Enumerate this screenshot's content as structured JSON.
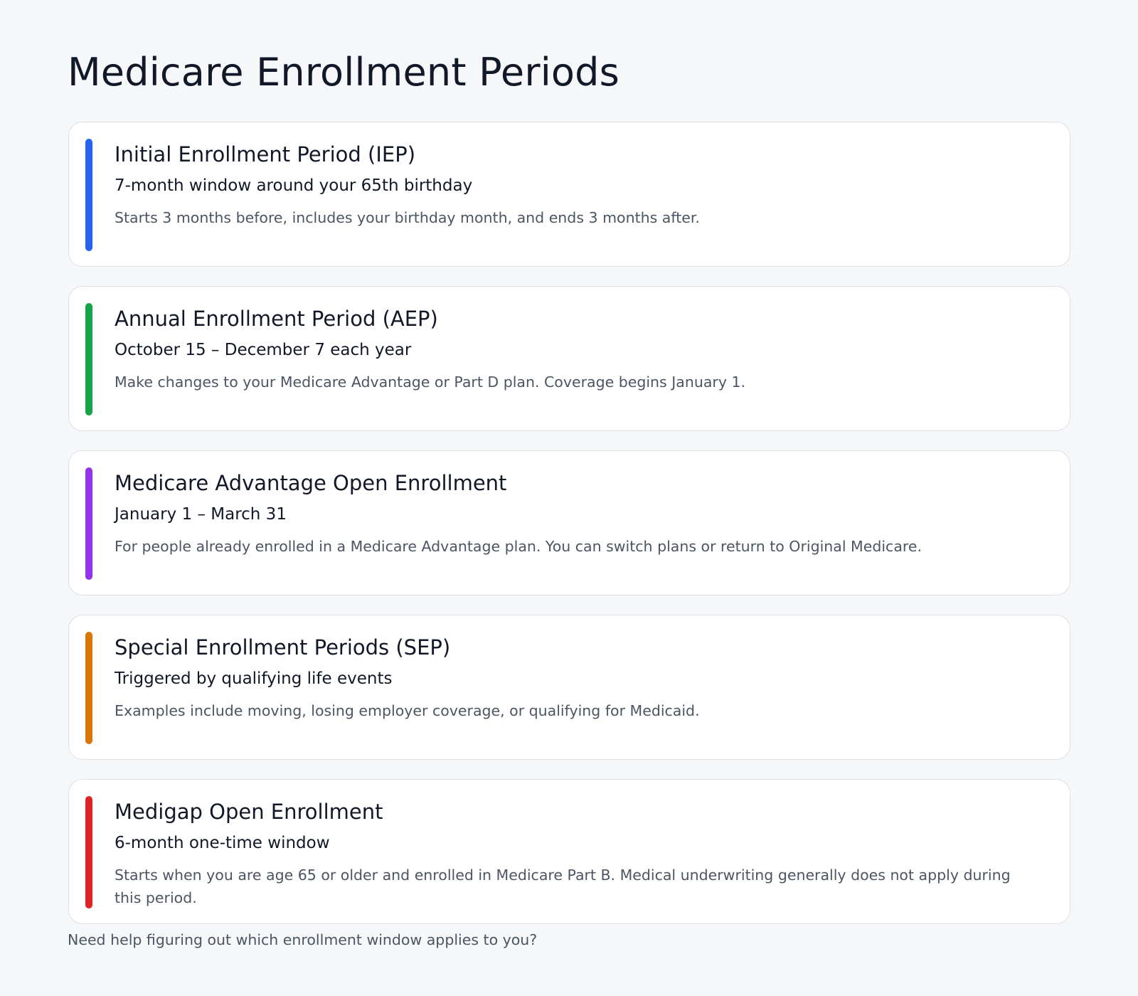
{
  "page": {
    "title": "Medicare Enrollment Periods",
    "footer_note": "Need help figuring out which enrollment window applies to you?"
  },
  "cards": [
    {
      "title": "Initial Enrollment Period (IEP)",
      "subtitle": "7-month window around your 65th birthday",
      "description": "Starts 3 months before, includes your birthday month, and ends 3 months after.",
      "accent_color": "#2563eb"
    },
    {
      "title": "Annual Enrollment Period (AEP)",
      "subtitle": "October 15 – December 7 each year",
      "description": "Make changes to your Medicare Advantage or Part D plan. Coverage begins January 1.",
      "accent_color": "#16a34a"
    },
    {
      "title": "Medicare Advantage Open Enrollment",
      "subtitle": "January 1 – March 31",
      "description": "For people already enrolled in a Medicare Advantage plan. You can switch plans or return to Original Medicare.",
      "accent_color": "#9333ea"
    },
    {
      "title": "Special Enrollment Periods (SEP)",
      "subtitle": "Triggered by qualifying life events",
      "description": "Examples include moving, losing employer coverage, or qualifying for Medicaid.",
      "accent_color": "#d97706"
    },
    {
      "title": "Medigap Open Enrollment",
      "subtitle": "6-month one-time window",
      "description": "Starts when you are age 65 or older and enrolled in Medicare Part B. Medical underwriting generally does not apply during this period.",
      "accent_color": "#dc2626"
    }
  ]
}
